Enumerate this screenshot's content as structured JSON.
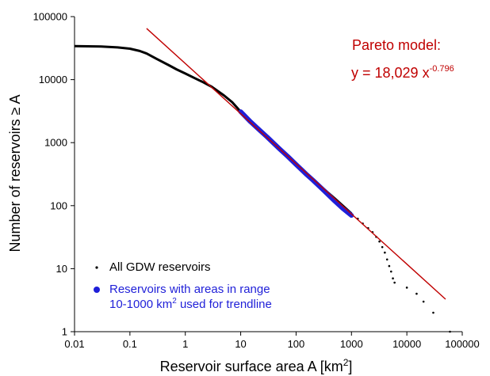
{
  "chart_data": {
    "type": "scatter",
    "xscale": "log",
    "yscale": "log",
    "xlabel": "Reservoir surface area A [km",
    "xlabel_sup": "2",
    "xlabel_end": "]",
    "ylabel": "Number of reservoirs ≥ A",
    "xlim": [
      0.01,
      100000
    ],
    "ylim": [
      1,
      100000
    ],
    "x_ticks": [
      "0.01",
      "0.1",
      "1",
      "10",
      "100",
      "1000",
      "10000",
      "100000"
    ],
    "y_ticks": [
      "1",
      "10",
      "100",
      "1000",
      "10000",
      "100000"
    ],
    "grid": false,
    "annotation": {
      "line1": "Pareto model:",
      "line2_prefix": "y = 18,029 x",
      "line2_exponent": "-0.796",
      "color": "#c00000"
    },
    "legend": {
      "placement": "bottom-left",
      "entries": [
        {
          "label_lines": [
            "All GDW reservoirs"
          ],
          "color": "#000000"
        },
        {
          "label_lines": [
            "Reservoirs with areas in range",
            "10-1000 km"
          ],
          "sup": "2",
          "suffix": " used for trendline",
          "color": "#1f1fd8"
        }
      ]
    },
    "series": [
      {
        "name": "All GDW reservoirs",
        "color": "#000000",
        "style": "points",
        "x": [
          0.01,
          0.03,
          0.06,
          0.1,
          0.15,
          0.2,
          0.3,
          0.5,
          0.7,
          1,
          1.5,
          2,
          3,
          5,
          7,
          10,
          20,
          50,
          100,
          200,
          500,
          1000,
          1300,
          1600,
          2000,
          2400,
          2800,
          3200,
          3600,
          4000,
          4400,
          4800,
          5200,
          5600,
          6000,
          10000,
          15000,
          20000,
          30000,
          60000
        ],
        "y": [
          34000,
          33500,
          32500,
          31000,
          28500,
          26000,
          21500,
          17000,
          14500,
          12500,
          10500,
          9300,
          7700,
          5600,
          4400,
          3100,
          1700,
          800,
          450,
          260,
          130,
          75,
          62,
          52,
          44,
          38,
          32,
          27,
          22,
          18,
          14,
          11,
          9,
          7,
          6,
          5,
          4,
          3,
          2,
          1
        ]
      },
      {
        "name": "Reservoirs with areas in range 10-1000 km2 used for trendline",
        "color": "#1f1fd8",
        "style": "thick",
        "x": [
          10,
          15,
          20,
          30,
          50,
          70,
          100,
          150,
          200,
          300,
          500,
          700,
          1000
        ],
        "y": [
          3100,
          2150,
          1700,
          1230,
          800,
          610,
          450,
          320,
          255,
          182,
          118,
          90,
          70
        ]
      },
      {
        "name": "Pareto model",
        "color": "#c00000",
        "style": "line",
        "equation": {
          "a": 18029,
          "b": -0.796
        },
        "x_range": [
          0.2,
          50000
        ]
      }
    ]
  }
}
